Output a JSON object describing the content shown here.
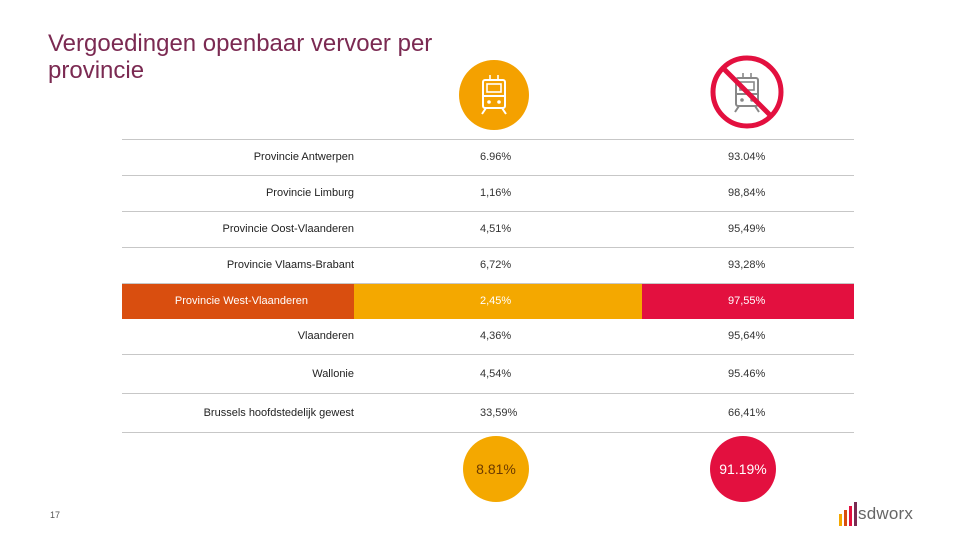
{
  "slide": {
    "title": "Vergoedingen openbaar vervoer per provincie",
    "page_number": "17"
  },
  "icons": {
    "col1": "train-icon",
    "col2": "no-train-icon"
  },
  "table": {
    "rows": [
      {
        "name": "Provincie Antwerpen",
        "v1": "6.96%",
        "v2": "93.04%"
      },
      {
        "name": "Provincie Limburg",
        "v1": "1,16%",
        "v2": "98,84%"
      },
      {
        "name": "Provincie Oost-Vlaanderen",
        "v1": "4,51%",
        "v2": "95,49%"
      },
      {
        "name": "Provincie Vlaams-Brabant",
        "v1": "6,72%",
        "v2": "93,28%"
      },
      {
        "name": "Provincie West-Vlaanderen",
        "v1": "2,45%",
        "v2": "97,55%"
      },
      {
        "name": "Vlaanderen",
        "v1": "4,36%",
        "v2": "95,64%"
      },
      {
        "name": "Wallonie",
        "v1": "4,54%",
        "v2": "95.46%"
      },
      {
        "name": "Brussels hoofdstedelijk gewest",
        "v1": "33,59%",
        "v2": "66,41%"
      }
    ]
  },
  "totals": {
    "v1": "8.81%",
    "v2": "91.19%"
  },
  "brand": {
    "logo_text": "sdworx"
  },
  "colors": {
    "title": "#7b2a52",
    "amber": "#f4a800",
    "red": "#e3103f",
    "orange": "#d94e0f"
  }
}
